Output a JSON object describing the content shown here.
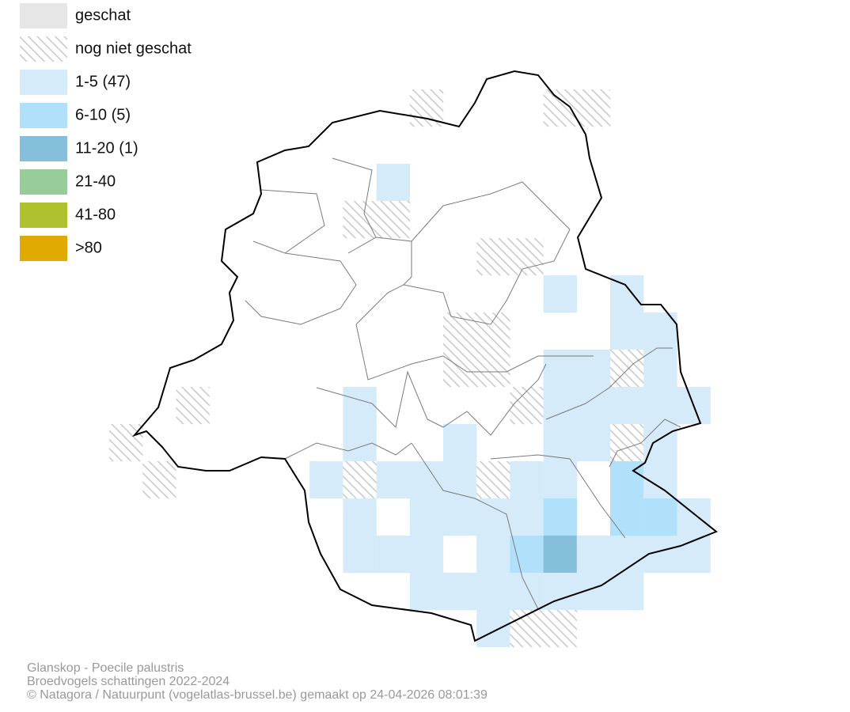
{
  "legend": [
    {
      "label": "geschat",
      "color": "#e6e6e6"
    },
    {
      "label": "nog niet geschat",
      "style": "hatch"
    },
    {
      "label": "1-5 (47)",
      "color": "#d6ebfa"
    },
    {
      "label": "6-10 (5)",
      "color": "#b0e0fa"
    },
    {
      "label": "11-20 (1)",
      "color": "#86bfdc"
    },
    {
      "label": "21-40",
      "color": "#98cc98"
    },
    {
      "label": "41-80",
      "color": "#afc12f"
    },
    {
      "label": ">80",
      "color": "#e0aa00"
    }
  ],
  "footer": {
    "lines": [
      "Glanskop - Poecile palustris",
      "Broedvogels schattingen 2022-2024",
      "© Natagora / Natuurpunt (vogelatlas-brussel.be) gemaakt op 24-04-2026 08:01:39"
    ]
  }
}
